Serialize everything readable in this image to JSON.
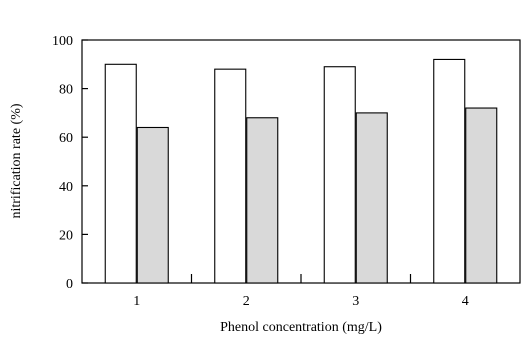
{
  "chart_data": {
    "type": "bar",
    "title": "",
    "xlabel": "Phenol concentration (mg/L)",
    "ylabel": "nitrification rate (%)",
    "categories": [
      "1",
      "2",
      "3",
      "4"
    ],
    "series": [
      {
        "values": [
          90,
          88,
          89,
          92
        ],
        "color": "#ffffff"
      },
      {
        "values": [
          64,
          68,
          70,
          72
        ],
        "color": "#d9d9d9"
      }
    ],
    "ylim": [
      0,
      100
    ],
    "yticks": [
      "0",
      "20",
      "40",
      "60",
      "80",
      "100"
    ],
    "grid": false,
    "legend": "none"
  }
}
